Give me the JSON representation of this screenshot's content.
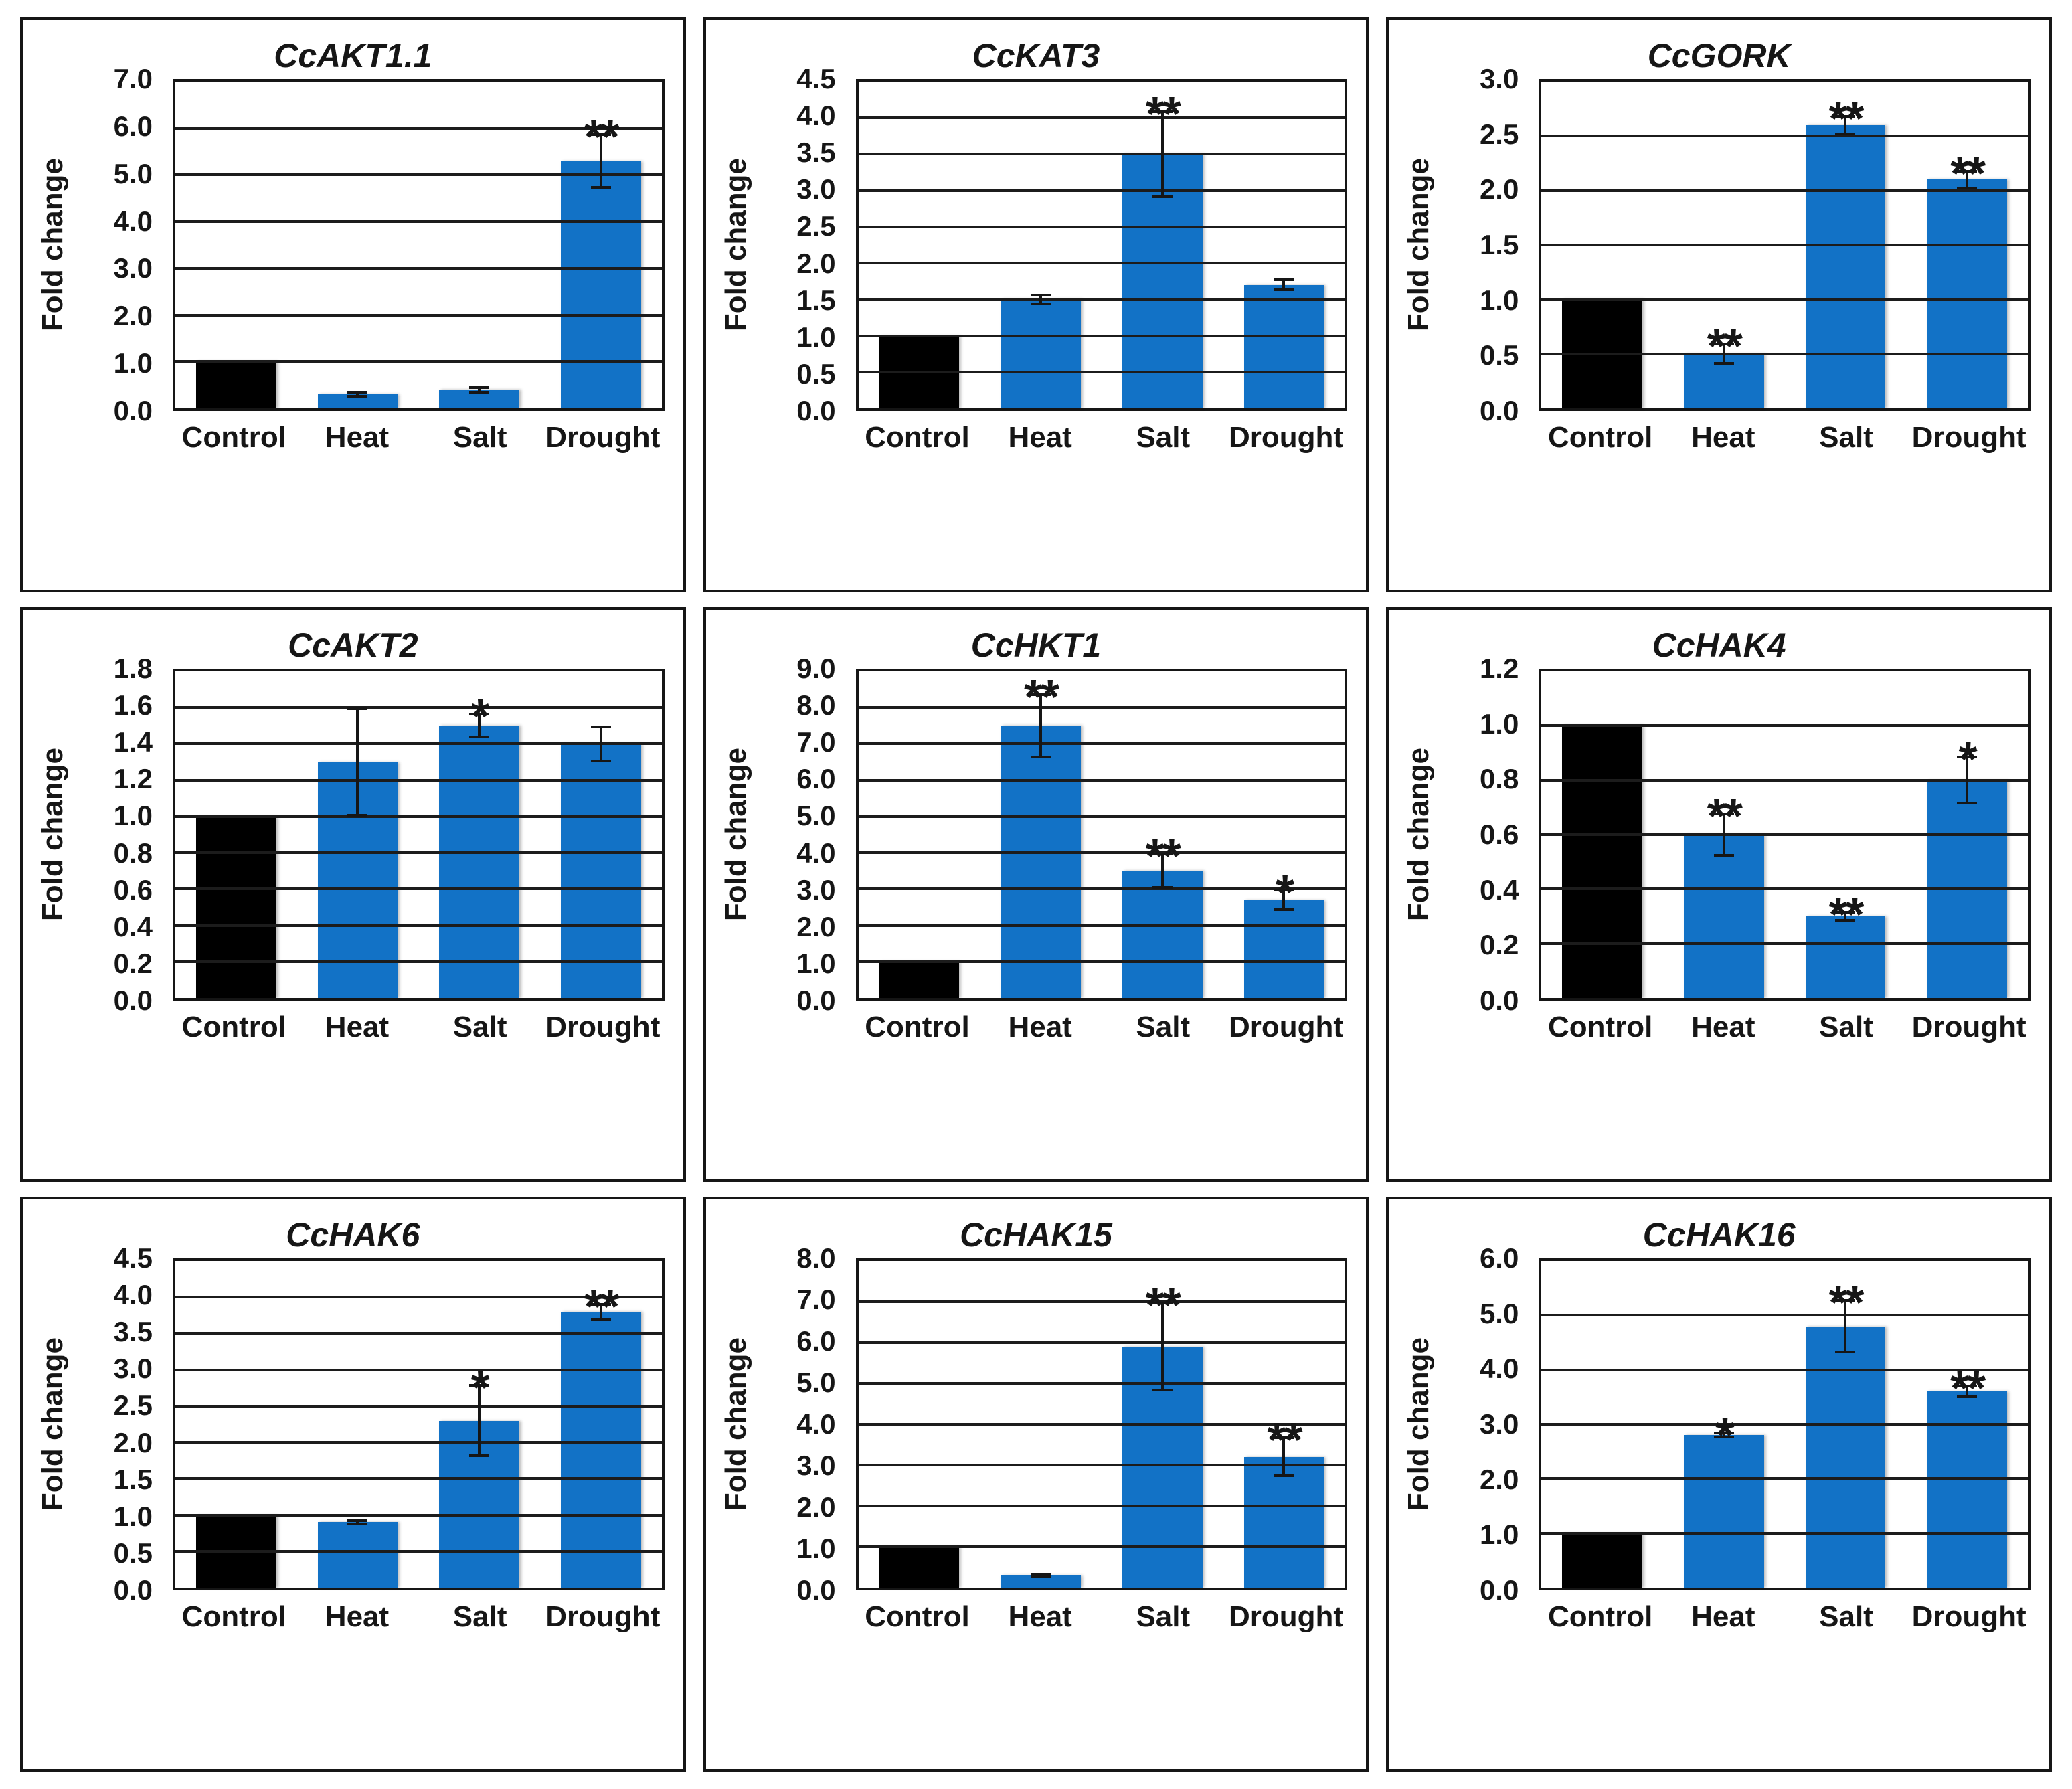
{
  "figure": {
    "background": "#ffffff",
    "bar_colors": {
      "control": "#000000",
      "treatment": "#1272C6"
    },
    "line_color": "#161616",
    "categories": [
      "Control",
      "Heat",
      "Salt",
      "Drought"
    ],
    "y_axis_title": "Fold change",
    "significance_legend": {
      "single": "*",
      "double": "**"
    }
  },
  "chart_data": [
    {
      "type": "bar",
      "title": "CcAKT1.1",
      "ylabel": "Fold change",
      "categories": [
        "Control",
        "Heat",
        "Salt",
        "Drought"
      ],
      "values": [
        1.0,
        0.3,
        0.4,
        5.3
      ],
      "errors": [
        0,
        0.07,
        0.08,
        0.6
      ],
      "significance": [
        "",
        "",
        "",
        "**"
      ],
      "ylim": [
        0,
        7.0
      ],
      "ytick_step": 1.0,
      "grid": true,
      "legend": "none"
    },
    {
      "type": "bar",
      "title": "CcKAT3",
      "ylabel": "Fold change",
      "categories": [
        "Control",
        "Heat",
        "Salt",
        "Drought"
      ],
      "values": [
        1.0,
        1.5,
        3.5,
        1.7
      ],
      "errors": [
        0,
        0.08,
        0.6,
        0.09
      ],
      "significance": [
        "",
        "",
        "**",
        ""
      ],
      "ylim": [
        0,
        4.5
      ],
      "ytick_step": 0.5,
      "grid": true,
      "legend": "none"
    },
    {
      "type": "bar",
      "title": "CcGORK",
      "ylabel": "Fold change",
      "categories": [
        "Control",
        "Heat",
        "Salt",
        "Drought"
      ],
      "values": [
        1.0,
        0.5,
        2.6,
        2.1
      ],
      "errors": [
        0,
        0.1,
        0.09,
        0.09
      ],
      "significance": [
        "",
        "**",
        "**",
        "**"
      ],
      "ylim": [
        0,
        3.0
      ],
      "ytick_step": 0.5,
      "grid": true,
      "legend": "none"
    },
    {
      "type": "bar",
      "title": "CcAKT2",
      "ylabel": "Fold change",
      "categories": [
        "Control",
        "Heat",
        "Salt",
        "Drought"
      ],
      "values": [
        1.0,
        1.3,
        1.5,
        1.4
      ],
      "errors": [
        0,
        0.3,
        0.07,
        0.1
      ],
      "significance": [
        "",
        "",
        "*",
        ""
      ],
      "ylim": [
        0,
        1.8
      ],
      "ytick_step": 0.2,
      "grid": true,
      "legend": "none"
    },
    {
      "type": "bar",
      "title": "CcHKT1",
      "ylabel": "Fold change",
      "categories": [
        "Control",
        "Heat",
        "Salt",
        "Drought"
      ],
      "values": [
        1.0,
        7.5,
        3.5,
        2.7
      ],
      "errors": [
        0,
        0.9,
        0.5,
        0.3
      ],
      "significance": [
        "",
        "**",
        "**",
        "*"
      ],
      "ylim": [
        0,
        9.0
      ],
      "ytick_step": 1.0,
      "grid": true,
      "legend": "none"
    },
    {
      "type": "bar",
      "title": "CcHAK4",
      "ylabel": "Fold change",
      "categories": [
        "Control",
        "Heat",
        "Salt",
        "Drought"
      ],
      "values": [
        1.0,
        0.6,
        0.3,
        0.8
      ],
      "errors": [
        0,
        0.08,
        0.02,
        0.09
      ],
      "significance": [
        "",
        "**",
        "**",
        "*"
      ],
      "ylim": [
        0,
        1.2
      ],
      "ytick_step": 0.2,
      "grid": true,
      "legend": "none"
    },
    {
      "type": "bar",
      "title": "CcHAK6",
      "ylabel": "Fold change",
      "categories": [
        "Control",
        "Heat",
        "Salt",
        "Drought"
      ],
      "values": [
        1.0,
        0.9,
        2.3,
        3.8
      ],
      "errors": [
        0,
        0.04,
        0.5,
        0.12
      ],
      "significance": [
        "",
        "",
        "*",
        "**"
      ],
      "ylim": [
        0,
        4.5
      ],
      "ytick_step": 0.5,
      "grid": true,
      "legend": "none"
    },
    {
      "type": "bar",
      "title": "CcHAK15",
      "ylabel": "Fold change",
      "categories": [
        "Control",
        "Heat",
        "Salt",
        "Drought"
      ],
      "values": [
        1.0,
        0.3,
        5.9,
        3.2
      ],
      "errors": [
        0,
        0.05,
        1.1,
        0.5
      ],
      "significance": [
        "",
        "",
        "**",
        "**"
      ],
      "ylim": [
        0,
        8.0
      ],
      "ytick_step": 1.0,
      "grid": true,
      "legend": "none"
    },
    {
      "type": "bar",
      "title": "CcHAK16",
      "ylabel": "Fold change",
      "categories": [
        "Control",
        "Heat",
        "Salt",
        "Drought"
      ],
      "values": [
        1.0,
        2.8,
        4.8,
        3.6
      ],
      "errors": [
        0,
        0.06,
        0.5,
        0.12
      ],
      "significance": [
        "",
        "*",
        "**",
        "**"
      ],
      "ylim": [
        0,
        6.0
      ],
      "ytick_step": 1.0,
      "grid": true,
      "legend": "none"
    }
  ]
}
